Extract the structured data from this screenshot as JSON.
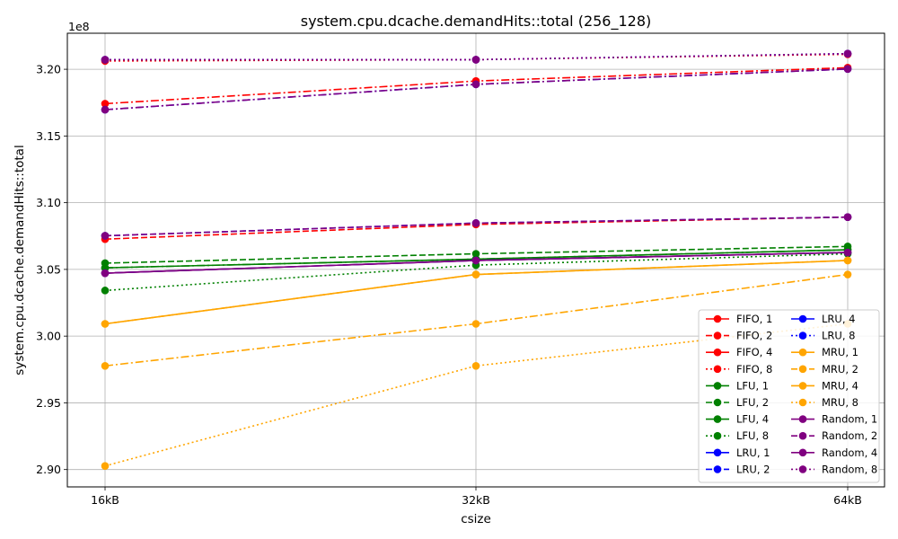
{
  "chart_data": {
    "type": "line",
    "title": "system.cpu.dcache.demandHits::total (256_128)",
    "xlabel": "csize",
    "ylabel": "system.cpu.dcache.demandHits::total",
    "y_scale_label": "1e8",
    "categories": [
      "16kB",
      "32kB",
      "64kB"
    ],
    "y_ticks": [
      "2.90",
      "2.95",
      "3.00",
      "3.05",
      "3.10",
      "3.15",
      "3.20"
    ],
    "ylim": [
      2.887,
      3.227
    ],
    "grid": true,
    "legend_position": "lower-right",
    "legend_columns": 2,
    "series": [
      {
        "name": "FIFO, 1",
        "color": "#ff0000",
        "dash": "solid",
        "values": [
          3.0472,
          3.0567,
          3.0627
        ]
      },
      {
        "name": "FIFO, 2",
        "color": "#ff0000",
        "dash": "dashed",
        "values": [
          3.0727,
          3.0837,
          3.0892
        ]
      },
      {
        "name": "FIFO, 4",
        "color": "#ff0000",
        "dash": "dashdot",
        "values": [
          3.1742,
          3.1912,
          3.2012
        ]
      },
      {
        "name": "FIFO, 8",
        "color": "#ff0000",
        "dash": "dotted",
        "values": [
          3.2062,
          3.2072,
          3.2112
        ]
      },
      {
        "name": "LFU, 1",
        "color": "#008000",
        "dash": "solid",
        "values": [
          3.0512,
          3.0577,
          3.0647
        ]
      },
      {
        "name": "LFU, 2",
        "color": "#008000",
        "dash": "dashed",
        "values": [
          3.0547,
          3.0617,
          3.0672
        ]
      },
      {
        "name": "LFU, 4",
        "color": "#008000",
        "dash": "dashdot",
        "values": [
          3.0512,
          3.0577,
          3.0647
        ]
      },
      {
        "name": "LFU, 8",
        "color": "#008000",
        "dash": "dotted",
        "values": [
          3.0342,
          3.0532,
          3.0617
        ]
      },
      {
        "name": "LRU, 1",
        "color": "#0000ff",
        "dash": "solid",
        "values": [
          3.0472,
          3.0567,
          3.0627
        ]
      },
      {
        "name": "LRU, 2",
        "color": "#0000ff",
        "dash": "dashed",
        "values": [
          3.0752,
          3.0847,
          3.0892
        ]
      },
      {
        "name": "LRU, 4",
        "color": "#0000ff",
        "dash": "dashdot",
        "values": [
          3.1697,
          3.1887,
          3.2002
        ]
      },
      {
        "name": "LRU, 8",
        "color": "#0000ff",
        "dash": "dotted",
        "values": [
          3.2072,
          3.2072,
          3.2117
        ]
      },
      {
        "name": "MRU, 1",
        "color": "#ffa500",
        "dash": "solid",
        "values": [
          3.0092,
          3.0462,
          3.0567
        ]
      },
      {
        "name": "MRU, 2",
        "color": "#ffa500",
        "dash": "dashed",
        "values": [
          3.0092,
          3.0462,
          3.0567
        ]
      },
      {
        "name": "MRU, 4",
        "color": "#ffa500",
        "dash": "dashdot",
        "values": [
          2.9777,
          3.0092,
          3.0462
        ]
      },
      {
        "name": "MRU, 8",
        "color": "#ffa500",
        "dash": "dotted",
        "values": [
          2.9027,
          2.9777,
          3.0092
        ]
      },
      {
        "name": "Random, 1",
        "color": "#800080",
        "dash": "solid",
        "values": [
          3.0472,
          3.0567,
          3.0627
        ]
      },
      {
        "name": "Random, 2",
        "color": "#800080",
        "dash": "dashed",
        "values": [
          3.0752,
          3.0847,
          3.0892
        ]
      },
      {
        "name": "Random, 4",
        "color": "#800080",
        "dash": "dashdot",
        "values": [
          3.1697,
          3.1887,
          3.2002
        ]
      },
      {
        "name": "Random, 8",
        "color": "#800080",
        "dash": "dotted",
        "values": [
          3.2072,
          3.2072,
          3.2117
        ]
      }
    ]
  }
}
